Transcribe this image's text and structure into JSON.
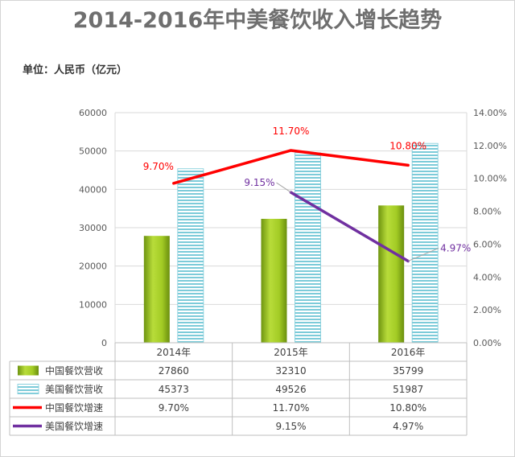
{
  "chart_data": {
    "type": "bar+line",
    "title": "2014-2016年中美餐饮收入增长趋势",
    "unit_label": "单位：人民币（亿元）",
    "categories": [
      "2014年",
      "2015年",
      "2016年"
    ],
    "y_left": {
      "min": 0,
      "max": 60000,
      "step": 10000,
      "ticks": [
        "0",
        "10000",
        "20000",
        "30000",
        "40000",
        "50000",
        "60000"
      ]
    },
    "y_right": {
      "min": 0,
      "max": 14,
      "step": 2,
      "ticks": [
        "0.00%",
        "2.00%",
        "4.00%",
        "6.00%",
        "8.00%",
        "10.00%",
        "12.00%",
        "14.00%"
      ]
    },
    "bar_series": [
      {
        "name": "中国餐饮营收",
        "color": "#9bc520",
        "values": [
          27860,
          32310,
          35799
        ],
        "labels": [
          "27860",
          "32310",
          "35799"
        ]
      },
      {
        "name": "美国餐饮营收",
        "color": "#7ccbd9",
        "values": [
          45373,
          49526,
          51987
        ],
        "labels": [
          "45373",
          "49526",
          "51987"
        ]
      }
    ],
    "line_series": [
      {
        "name": "中国餐饮增速",
        "color": "#ff0000",
        "values": [
          9.7,
          11.7,
          10.8
        ],
        "labels": [
          "9.70%",
          "11.70%",
          "10.80%"
        ]
      },
      {
        "name": "美国餐饮增速",
        "color": "#7030a0",
        "values": [
          null,
          9.15,
          4.97
        ],
        "labels": [
          "",
          "9.15%",
          "4.97%"
        ]
      }
    ]
  }
}
